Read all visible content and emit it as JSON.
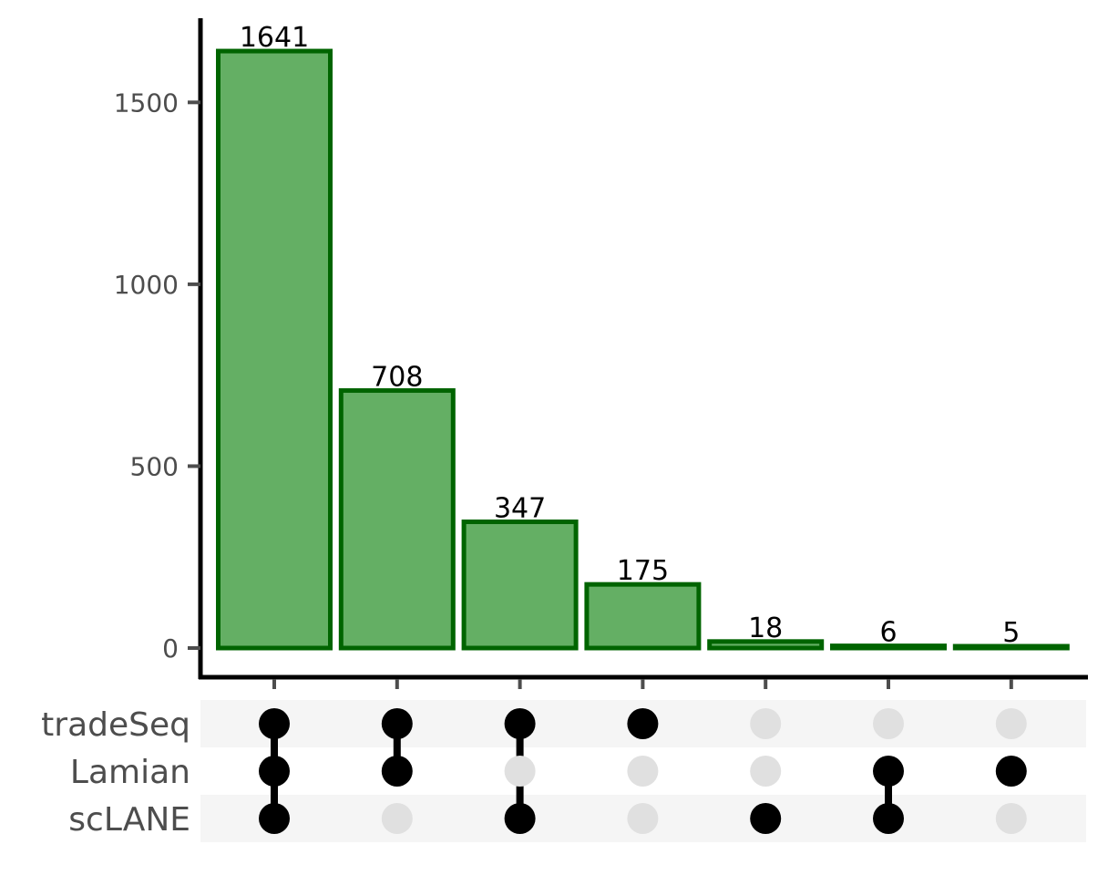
{
  "chart_data": {
    "type": "upset",
    "title": "",
    "xlabel": "",
    "ylabel": "",
    "ylim": [
      0,
      1700
    ],
    "yticks": [
      0,
      500,
      1000,
      1500
    ],
    "grid": false,
    "sets": [
      "tradeSeq",
      "Lamian",
      "scLANE"
    ],
    "intersections": [
      {
        "members": [
          "tradeSeq",
          "Lamian",
          "scLANE"
        ],
        "value": 1641
      },
      {
        "members": [
          "tradeSeq",
          "Lamian"
        ],
        "value": 708
      },
      {
        "members": [
          "tradeSeq",
          "scLANE"
        ],
        "value": 347
      },
      {
        "members": [
          "tradeSeq"
        ],
        "value": 175
      },
      {
        "members": [
          "scLANE"
        ],
        "value": 18
      },
      {
        "members": [
          "Lamian",
          "scLANE"
        ],
        "value": 6
      },
      {
        "members": [
          "Lamian"
        ],
        "value": 5
      }
    ]
  },
  "colors": {
    "bar_fill": "#64af64",
    "bar_stroke": "#006400",
    "dot_active": "#000000",
    "dot_inactive": "#e0e0e0",
    "row_shade": "#f5f5f5",
    "axis": "#000000",
    "tick": "#4d4d4d"
  }
}
